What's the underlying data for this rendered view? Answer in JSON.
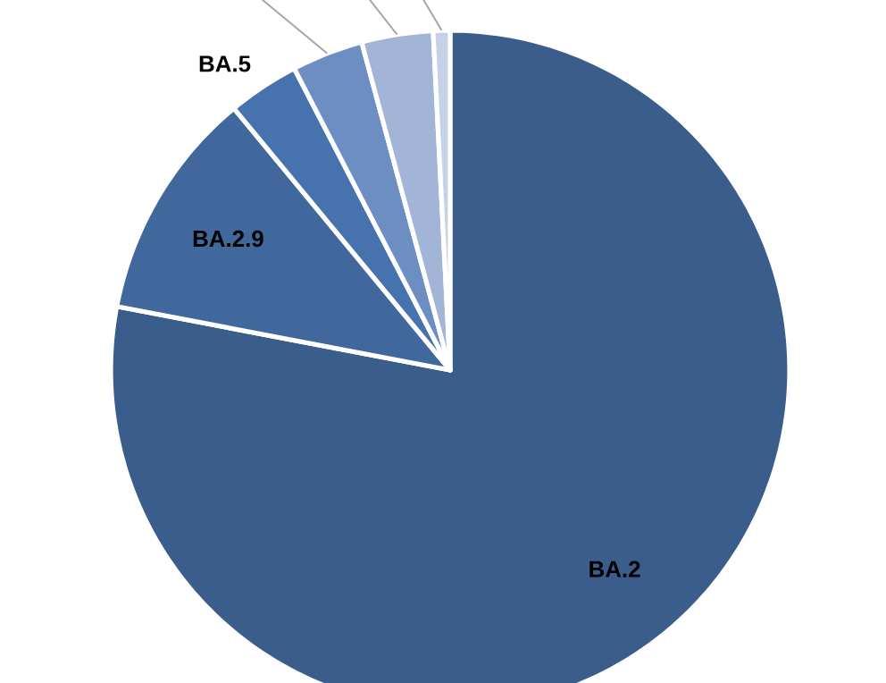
{
  "chart_data": {
    "type": "pie",
    "categories": [
      "BA.2",
      "BA.2.9",
      "BA.5",
      null,
      null,
      null
    ],
    "values": [
      78,
      11,
      3.4,
      3.4,
      3.4,
      0.8
    ],
    "colors": [
      "#3a5d8b",
      "#41689c",
      "#4673ad",
      "#6c8ec3",
      "#a2b5d7",
      "#c5d1e7"
    ]
  }
}
